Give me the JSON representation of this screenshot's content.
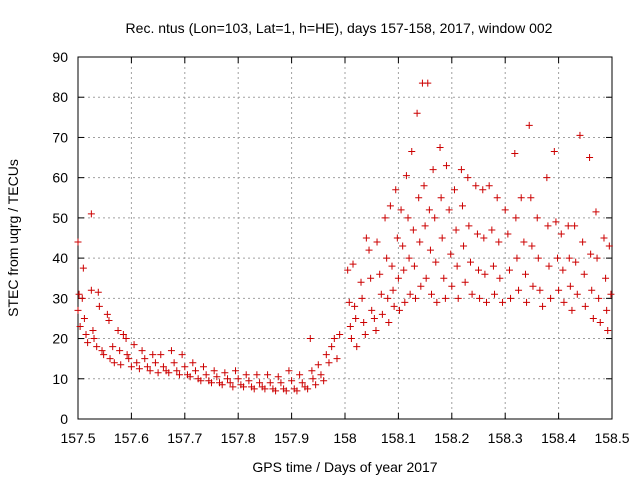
{
  "chart_data": {
    "type": "scatter",
    "title": "Rec. ntus (Lon=103, Lat=1, h=HE), days 157-158, 2017, window 002",
    "xlabel": "GPS time / Days of year 2017",
    "ylabel": "STEC from uqrg / TECUs",
    "xlim": [
      157.5,
      158.5
    ],
    "ylim": [
      0,
      90
    ],
    "x_ticks": [
      157.5,
      157.6,
      157.7,
      157.8,
      157.9,
      158.0,
      158.1,
      158.2,
      158.3,
      158.4,
      158.5
    ],
    "x_tick_labels": [
      "157.5",
      "157.6",
      "157.7",
      "157.8",
      "157.9",
      "158",
      "158.1",
      "158.2",
      "158.3",
      "158.4",
      "158.5"
    ],
    "y_ticks": [
      0,
      10,
      20,
      30,
      40,
      50,
      60,
      70,
      80,
      90
    ],
    "y_tick_labels": [
      "0",
      "10",
      "20",
      "30",
      "40",
      "50",
      "60",
      "70",
      "80",
      "90"
    ],
    "grid": true,
    "marker": "plus",
    "color": "#cc0000",
    "points": [
      [
        157.5,
        44
      ],
      [
        157.5,
        27
      ],
      [
        157.502,
        31
      ],
      [
        157.504,
        23
      ],
      [
        157.508,
        30
      ],
      [
        157.51,
        37.5
      ],
      [
        157.512,
        25
      ],
      [
        157.515,
        21
      ],
      [
        157.518,
        19
      ],
      [
        157.525,
        51
      ],
      [
        157.525,
        32
      ],
      [
        157.528,
        22
      ],
      [
        157.53,
        20
      ],
      [
        157.535,
        18
      ],
      [
        157.538,
        31.5
      ],
      [
        157.54,
        28
      ],
      [
        157.545,
        17
      ],
      [
        157.548,
        16
      ],
      [
        157.555,
        26
      ],
      [
        157.558,
        24.5
      ],
      [
        157.56,
        15
      ],
      [
        157.565,
        18
      ],
      [
        157.568,
        14
      ],
      [
        157.575,
        22
      ],
      [
        157.578,
        17
      ],
      [
        157.58,
        13.5
      ],
      [
        157.585,
        21
      ],
      [
        157.59,
        20
      ],
      [
        157.592,
        16
      ],
      [
        157.595,
        15
      ],
      [
        157.6,
        13
      ],
      [
        157.605,
        18.5
      ],
      [
        157.61,
        14
      ],
      [
        157.615,
        12.5
      ],
      [
        157.62,
        17
      ],
      [
        157.625,
        15
      ],
      [
        157.63,
        13
      ],
      [
        157.635,
        12
      ],
      [
        157.64,
        16
      ],
      [
        157.645,
        14
      ],
      [
        157.65,
        11.5
      ],
      [
        157.655,
        16
      ],
      [
        157.66,
        13
      ],
      [
        157.665,
        12
      ],
      [
        157.67,
        11.5
      ],
      [
        157.675,
        17
      ],
      [
        157.68,
        14
      ],
      [
        157.685,
        12
      ],
      [
        157.69,
        11
      ],
      [
        157.695,
        16
      ],
      [
        157.7,
        13
      ],
      [
        157.705,
        11
      ],
      [
        157.71,
        10.5
      ],
      [
        157.715,
        14
      ],
      [
        157.72,
        12
      ],
      [
        157.725,
        10
      ],
      [
        157.73,
        9.5
      ],
      [
        157.735,
        13
      ],
      [
        157.74,
        11
      ],
      [
        157.745,
        9.5
      ],
      [
        157.75,
        9
      ],
      [
        157.755,
        12
      ],
      [
        157.76,
        10.5
      ],
      [
        157.765,
        9
      ],
      [
        157.77,
        8.5
      ],
      [
        157.775,
        11.5
      ],
      [
        157.78,
        10
      ],
      [
        157.785,
        9
      ],
      [
        157.79,
        8
      ],
      [
        157.795,
        12
      ],
      [
        157.8,
        10
      ],
      [
        157.805,
        8.5
      ],
      [
        157.81,
        8
      ],
      [
        157.815,
        11
      ],
      [
        157.82,
        9.5
      ],
      [
        157.825,
        8
      ],
      [
        157.83,
        7.5
      ],
      [
        157.835,
        11
      ],
      [
        157.84,
        9
      ],
      [
        157.845,
        8
      ],
      [
        157.85,
        7.5
      ],
      [
        157.855,
        11
      ],
      [
        157.86,
        9
      ],
      [
        157.865,
        7.5
      ],
      [
        157.87,
        7
      ],
      [
        157.875,
        10.5
      ],
      [
        157.88,
        9
      ],
      [
        157.885,
        7.5
      ],
      [
        157.89,
        7
      ],
      [
        157.895,
        12
      ],
      [
        157.9,
        9.5
      ],
      [
        157.905,
        7.5
      ],
      [
        157.91,
        7
      ],
      [
        157.915,
        11
      ],
      [
        157.92,
        9
      ],
      [
        157.925,
        8
      ],
      [
        157.93,
        7.5
      ],
      [
        157.935,
        20
      ],
      [
        157.938,
        12
      ],
      [
        157.94,
        10
      ],
      [
        157.945,
        8.5
      ],
      [
        157.95,
        13.5
      ],
      [
        157.955,
        11
      ],
      [
        157.96,
        9.5
      ],
      [
        157.965,
        16
      ],
      [
        157.97,
        14
      ],
      [
        157.975,
        18
      ],
      [
        157.98,
        20
      ],
      [
        157.985,
        15
      ],
      [
        157.99,
        21
      ],
      [
        158.005,
        37
      ],
      [
        158.008,
        29
      ],
      [
        158.01,
        23
      ],
      [
        158.012,
        20
      ],
      [
        158.015,
        38.5
      ],
      [
        158.018,
        28
      ],
      [
        158.02,
        25
      ],
      [
        158.022,
        18
      ],
      [
        158.03,
        34
      ],
      [
        158.032,
        30
      ],
      [
        158.035,
        24
      ],
      [
        158.038,
        21
      ],
      [
        158.04,
        45
      ],
      [
        158.045,
        42
      ],
      [
        158.048,
        35
      ],
      [
        158.05,
        27
      ],
      [
        158.055,
        25
      ],
      [
        158.058,
        22
      ],
      [
        158.06,
        44
      ],
      [
        158.065,
        36
      ],
      [
        158.068,
        31
      ],
      [
        158.07,
        26
      ],
      [
        158.075,
        50
      ],
      [
        158.078,
        40
      ],
      [
        158.08,
        30
      ],
      [
        158.082,
        24
      ],
      [
        158.085,
        53
      ],
      [
        158.088,
        38
      ],
      [
        158.09,
        32
      ],
      [
        158.092,
        28
      ],
      [
        158.095,
        57
      ],
      [
        158.098,
        45
      ],
      [
        158.1,
        35
      ],
      [
        158.102,
        27
      ],
      [
        158.105,
        52
      ],
      [
        158.108,
        43
      ],
      [
        158.11,
        37
      ],
      [
        158.112,
        29
      ],
      [
        158.115,
        60.5
      ],
      [
        158.118,
        50
      ],
      [
        158.12,
        40
      ],
      [
        158.122,
        31
      ],
      [
        158.125,
        66.5
      ],
      [
        158.128,
        47
      ],
      [
        158.13,
        38
      ],
      [
        158.132,
        30
      ],
      [
        158.135,
        76
      ],
      [
        158.138,
        55
      ],
      [
        158.14,
        44
      ],
      [
        158.142,
        33
      ],
      [
        158.145,
        83.5
      ],
      [
        158.148,
        58
      ],
      [
        158.15,
        48
      ],
      [
        158.152,
        35
      ],
      [
        158.155,
        83.5
      ],
      [
        158.158,
        52
      ],
      [
        158.16,
        42
      ],
      [
        158.162,
        31
      ],
      [
        158.165,
        62
      ],
      [
        158.168,
        50
      ],
      [
        158.17,
        39
      ],
      [
        158.172,
        29
      ],
      [
        158.178,
        67.5
      ],
      [
        158.18,
        55
      ],
      [
        158.182,
        45
      ],
      [
        158.185,
        35
      ],
      [
        158.188,
        30
      ],
      [
        158.19,
        63
      ],
      [
        158.195,
        52
      ],
      [
        158.198,
        41
      ],
      [
        158.2,
        33
      ],
      [
        158.205,
        57
      ],
      [
        158.208,
        47
      ],
      [
        158.21,
        38
      ],
      [
        158.212,
        30
      ],
      [
        158.218,
        62
      ],
      [
        158.22,
        53
      ],
      [
        158.222,
        43
      ],
      [
        158.225,
        34
      ],
      [
        158.23,
        60
      ],
      [
        158.232,
        48
      ],
      [
        158.235,
        39
      ],
      [
        158.238,
        31
      ],
      [
        158.245,
        58
      ],
      [
        158.248,
        46
      ],
      [
        158.25,
        37
      ],
      [
        158.252,
        30
      ],
      [
        158.258,
        57
      ],
      [
        158.26,
        45
      ],
      [
        158.262,
        36
      ],
      [
        158.265,
        29
      ],
      [
        158.27,
        58
      ],
      [
        158.275,
        47
      ],
      [
        158.278,
        38
      ],
      [
        158.28,
        31
      ],
      [
        158.285,
        55
      ],
      [
        158.288,
        44
      ],
      [
        158.29,
        35
      ],
      [
        158.295,
        29
      ],
      [
        158.3,
        52
      ],
      [
        158.305,
        46
      ],
      [
        158.308,
        37
      ],
      [
        158.31,
        30
      ],
      [
        158.318,
        66
      ],
      [
        158.32,
        50
      ],
      [
        158.322,
        40
      ],
      [
        158.325,
        32
      ],
      [
        158.33,
        55
      ],
      [
        158.335,
        44
      ],
      [
        158.338,
        36
      ],
      [
        158.34,
        29
      ],
      [
        158.345,
        73
      ],
      [
        158.348,
        55
      ],
      [
        158.35,
        43
      ],
      [
        158.352,
        33
      ],
      [
        158.36,
        50
      ],
      [
        158.362,
        40
      ],
      [
        158.365,
        32
      ],
      [
        158.37,
        28
      ],
      [
        158.378,
        60
      ],
      [
        158.38,
        48
      ],
      [
        158.382,
        38
      ],
      [
        158.385,
        30
      ],
      [
        158.392,
        66.5
      ],
      [
        158.395,
        49
      ],
      [
        158.398,
        40
      ],
      [
        158.4,
        32
      ],
      [
        158.405,
        46
      ],
      [
        158.408,
        37
      ],
      [
        158.41,
        29
      ],
      [
        158.418,
        48
      ],
      [
        158.42,
        40
      ],
      [
        158.422,
        33
      ],
      [
        158.425,
        27
      ],
      [
        158.43,
        48
      ],
      [
        158.432,
        39
      ],
      [
        158.435,
        31
      ],
      [
        158.44,
        70.5
      ],
      [
        158.445,
        44
      ],
      [
        158.448,
        36
      ],
      [
        158.45,
        28
      ],
      [
        158.458,
        65
      ],
      [
        158.46,
        41
      ],
      [
        158.462,
        32
      ],
      [
        158.465,
        25
      ],
      [
        158.47,
        51.5
      ],
      [
        158.472,
        40
      ],
      [
        158.475,
        30
      ],
      [
        158.478,
        24
      ],
      [
        158.485,
        45
      ],
      [
        158.488,
        35
      ],
      [
        158.49,
        27
      ],
      [
        158.492,
        22
      ],
      [
        158.495,
        43
      ],
      [
        158.498,
        31
      ]
    ]
  }
}
